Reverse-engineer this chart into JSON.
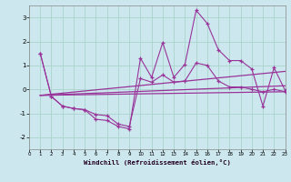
{
  "xlabel": "Windchill (Refroidissement éolien,°C)",
  "background_color": "#cce8ee",
  "grid_color": "#aad4cc",
  "line_color": "#993399",
  "xlim": [
    0,
    23
  ],
  "ylim": [
    -2.5,
    3.5
  ],
  "yticks": [
    -2,
    -1,
    0,
    1,
    2,
    3
  ],
  "xticks": [
    0,
    1,
    2,
    3,
    4,
    5,
    6,
    7,
    8,
    9,
    10,
    11,
    12,
    13,
    14,
    15,
    16,
    17,
    18,
    19,
    20,
    21,
    22,
    23
  ],
  "series1_x": [
    1,
    2,
    3,
    4,
    5,
    6,
    7,
    8,
    9,
    10,
    11,
    12,
    13,
    14,
    15,
    16,
    17,
    18,
    19,
    20,
    21,
    22,
    23
  ],
  "series1_y": [
    1.5,
    -0.3,
    -0.7,
    -0.8,
    -0.85,
    -1.25,
    -1.3,
    -1.55,
    -1.65,
    1.3,
    0.5,
    1.95,
    0.5,
    1.05,
    3.3,
    2.75,
    1.65,
    1.2,
    1.2,
    0.85,
    -0.7,
    0.9,
    -0.05
  ],
  "series2_x": [
    1,
    2,
    3,
    4,
    5,
    6,
    7,
    8,
    9,
    10,
    11,
    12,
    13,
    14,
    15,
    16,
    17,
    18,
    19,
    20,
    21,
    22,
    23
  ],
  "series2_y": [
    1.5,
    -0.3,
    -0.7,
    -0.8,
    -0.85,
    -1.05,
    -1.1,
    -1.45,
    -1.55,
    0.45,
    0.3,
    0.6,
    0.3,
    0.35,
    1.1,
    1.0,
    0.35,
    0.1,
    0.1,
    0.0,
    -0.1,
    0.0,
    -0.1
  ],
  "trend1_x": [
    1,
    23
  ],
  "trend1_y": [
    -0.25,
    0.75
  ],
  "trend2_x": [
    1,
    23
  ],
  "trend2_y": [
    -0.25,
    0.15
  ],
  "trend3_x": [
    1,
    23
  ],
  "trend3_y": [
    -0.25,
    -0.1
  ]
}
